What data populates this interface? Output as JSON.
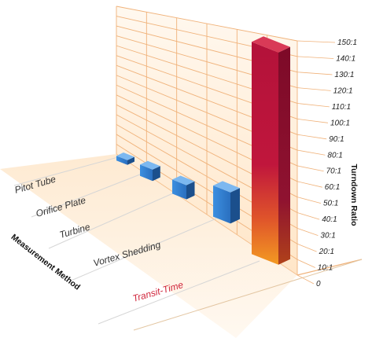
{
  "chart_data": {
    "type": "bar",
    "categories": [
      "Pitot Tube",
      "Orifice Plate",
      "Turbine",
      "Vortex Shedding",
      "Transit-Time"
    ],
    "values": [
      3,
      8,
      10,
      22,
      150
    ],
    "highlight_category": "Transit-Time",
    "xlabel": "Measurement Method",
    "ylabel": "Turndown Ratio",
    "ylim": [
      0,
      150
    ],
    "yticks": [
      "0",
      "10:1",
      "20:1",
      "30:1",
      "40:1",
      "50:1",
      "60:1",
      "70:1",
      "80:1",
      "90:1",
      "100:1",
      "110:1",
      "120:1",
      "130:1",
      "140:1",
      "150:1"
    ],
    "grid": true,
    "colors": {
      "bar_blue": "#2f7fd1",
      "bar_blue_dark": "#1b4f8c",
      "bar_highlight_top": "#c0163c",
      "bar_highlight_bottom": "#f08a1e",
      "highlight_label": "#d0263c",
      "grid": "#f0b27a",
      "wall": "#fff1e0",
      "floor": "#fde6cc"
    }
  }
}
